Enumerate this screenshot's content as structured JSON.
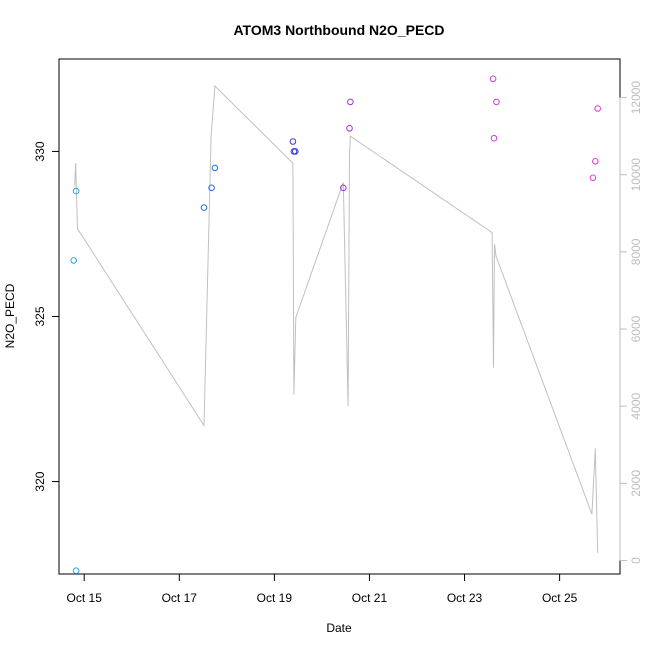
{
  "chart_data": {
    "type": "scatter",
    "title": "ATOM3 Northbound N2O_PECD",
    "xlabel": "Date",
    "ylabel": "N2O_PECD",
    "x_ticks": [
      {
        "value": 15,
        "label": "Oct 15"
      },
      {
        "value": 17,
        "label": "Oct 17"
      },
      {
        "value": 19,
        "label": "Oct 19"
      },
      {
        "value": 21,
        "label": "Oct 21"
      },
      {
        "value": 23,
        "label": "Oct 23"
      },
      {
        "value": 25,
        "label": "Oct 25"
      }
    ],
    "xlim": [
      14.47,
      26.27
    ],
    "ylim": [
      317.2,
      332.8
    ],
    "y_ticks": [
      320,
      325,
      330
    ],
    "y2lim": [
      -350,
      13000
    ],
    "y2_ticks": [
      0,
      2000,
      4000,
      6000,
      8000,
      10000,
      12000
    ],
    "grid": false,
    "legend": "none",
    "points": [
      {
        "x": 14.78,
        "y": 326.7,
        "color": "#2ea0e8"
      },
      {
        "x": 14.83,
        "y": 328.8,
        "color": "#2ea0e8"
      },
      {
        "x": 14.83,
        "y": 317.3,
        "color": "#2ea0e8"
      },
      {
        "x": 17.52,
        "y": 328.3,
        "color": "#1f6fd8"
      },
      {
        "x": 17.68,
        "y": 328.9,
        "color": "#1f6fd8"
      },
      {
        "x": 17.75,
        "y": 329.5,
        "color": "#1f6fd8"
      },
      {
        "x": 19.39,
        "y": 330.3,
        "color": "#3a37d8"
      },
      {
        "x": 19.41,
        "y": 330.0,
        "color": "#3a37d8"
      },
      {
        "x": 19.44,
        "y": 330.0,
        "color": "#3a37d8"
      },
      {
        "x": 20.45,
        "y": 328.9,
        "color": "#9a34d8"
      },
      {
        "x": 20.58,
        "y": 330.7,
        "color": "#9a34d8"
      },
      {
        "x": 20.6,
        "y": 331.5,
        "color": "#9a34d8"
      },
      {
        "x": 23.6,
        "y": 332.2,
        "color": "#d13ad8"
      },
      {
        "x": 23.62,
        "y": 330.4,
        "color": "#d13ad8"
      },
      {
        "x": 23.67,
        "y": 331.5,
        "color": "#d13ad8"
      },
      {
        "x": 25.7,
        "y": 329.2,
        "color": "#e63ad8"
      },
      {
        "x": 25.75,
        "y": 329.7,
        "color": "#e63ad8"
      },
      {
        "x": 25.8,
        "y": 331.3,
        "color": "#e63ad8"
      }
    ],
    "secondary_line": {
      "color": "#c0c0c0",
      "x": [
        14.8,
        14.82,
        14.85,
        14.86,
        17.52,
        17.67,
        17.75,
        19.39,
        19.41,
        19.45,
        20.45,
        20.55,
        20.58,
        20.6,
        23.58,
        23.61,
        23.63,
        23.66,
        25.68,
        25.75,
        25.8
      ],
      "y2": [
        9700,
        10300,
        8900,
        8600,
        3500,
        11000,
        12300,
        10300,
        4300,
        6300,
        9800,
        4000,
        10500,
        11000,
        8500,
        5000,
        8200,
        7900,
        1200,
        2900,
        200
      ]
    }
  }
}
